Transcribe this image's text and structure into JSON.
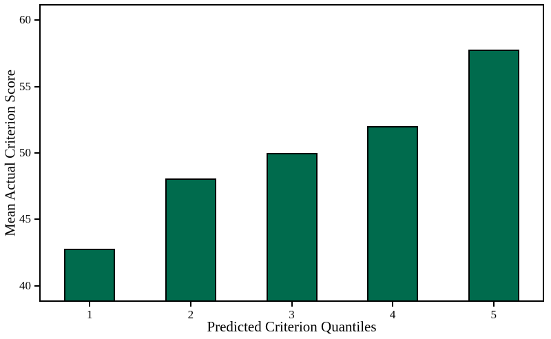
{
  "figure": {
    "background_color": "#ffffff",
    "frame_color": "#000000"
  },
  "chart_data": {
    "type": "bar",
    "categories": [
      "1",
      "2",
      "3",
      "4",
      "5"
    ],
    "values": [
      42.8,
      48.1,
      50.0,
      52.0,
      57.8
    ],
    "xlabel": "Predicted Criterion Quantiles",
    "ylabel": "Mean Actual Criterion Score",
    "yticks": [
      40,
      45,
      50,
      55,
      60
    ],
    "ylim": [
      38.8,
      61.2
    ],
    "grid": false,
    "bar_color": "#006B4D",
    "bar_border_color": "#000000",
    "tick_color": "#000000",
    "text_color": "#000000"
  }
}
